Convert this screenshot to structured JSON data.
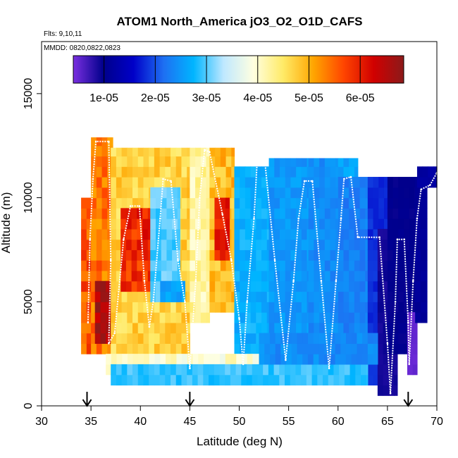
{
  "chart_data": {
    "type": "heatmap",
    "title": "ATOM1 North_America jO3_O2_O1D_CAFS",
    "subtitle_lines": [
      "Flts: 9,10,11",
      "MMDD: 0820,0822,0823"
    ],
    "xlabel": "Latitude (deg N)",
    "ylabel": "Altitude (m)",
    "xlim": [
      30,
      70
    ],
    "ylim": [
      0,
      17500
    ],
    "xticks": [
      30,
      35,
      40,
      45,
      50,
      55,
      60,
      65,
      70
    ],
    "yticks": [
      0,
      5000,
      10000,
      15000
    ],
    "colorbar": {
      "min": 4e-06,
      "max": 6.85e-05,
      "ticks": [
        1e-05,
        2e-05,
        3e-05,
        4e-05,
        5e-05,
        6e-05
      ],
      "tick_labels": [
        "1e-05",
        "2e-05",
        "3e-05",
        "4e-05",
        "5e-05",
        "6e-05"
      ],
      "colors": [
        "#7a2fe0",
        "#00008b",
        "#0000c8",
        "#1e6ff2",
        "#00b5ff",
        "#bfe8ff",
        "#ffffe0",
        "#ffea66",
        "#ffa500",
        "#ff4500",
        "#d10000",
        "#8b1a1a"
      ]
    },
    "arrows_latitude": [
      34.6,
      45,
      67.1
    ],
    "cell_size": {
      "lat_deg": 0.55,
      "alt_m": 500
    },
    "regions": [
      {
        "lat": [
          34,
          35
        ],
        "alt": [
          2500,
          10000
        ],
        "value": 5.6e-05
      },
      {
        "lat": [
          35,
          37.2
        ],
        "alt": [
          2500,
          12900
        ],
        "value": 5.4e-05
      },
      {
        "lat": [
          35.4,
          37
        ],
        "alt": [
          3000,
          6000
        ],
        "value": 6.5e-05
      },
      {
        "lat": [
          37,
          45
        ],
        "alt": [
          2500,
          12400
        ],
        "value": 4.7e-05
      },
      {
        "lat": [
          38,
          41
        ],
        "alt": [
          5500,
          9500
        ],
        "value": 5.9e-05
      },
      {
        "lat": [
          41,
          44
        ],
        "alt": [
          5000,
          10500
        ],
        "value": 3e-05
      },
      {
        "lat": [
          42,
          44.5
        ],
        "alt": [
          5000,
          6000
        ],
        "value": 2.6e-05
      },
      {
        "lat": [
          45,
          47
        ],
        "alt": [
          4000,
          12400
        ],
        "value": 4.2e-05
      },
      {
        "lat": [
          47,
          49.5
        ],
        "alt": [
          4500,
          12400
        ],
        "value": 4.9e-05
      },
      {
        "lat": [
          47.5,
          49
        ],
        "alt": [
          7000,
          10000
        ],
        "value": 6e-05
      },
      {
        "lat": [
          49.5,
          53
        ],
        "alt": [
          2000,
          11500
        ],
        "value": 2.7e-05
      },
      {
        "lat": [
          53,
          57
        ],
        "alt": [
          2000,
          11900
        ],
        "value": 2.5e-05
      },
      {
        "lat": [
          57,
          60
        ],
        "alt": [
          2000,
          11900
        ],
        "value": 2.4e-05
      },
      {
        "lat": [
          60,
          62
        ],
        "alt": [
          2000,
          11900
        ],
        "value": 2.6e-05
      },
      {
        "lat": [
          60,
          63
        ],
        "alt": [
          2000,
          11000
        ],
        "value": 2.3e-05
      },
      {
        "lat": [
          63,
          65
        ],
        "alt": [
          1000,
          11000
        ],
        "value": 1.8e-05
      },
      {
        "lat": [
          64,
          66
        ],
        "alt": [
          500,
          8500
        ],
        "value": 9e-06
      },
      {
        "lat": [
          65,
          67.8
        ],
        "alt": [
          2500,
          11000
        ],
        "value": 1e-05
      },
      {
        "lat": [
          67,
          68
        ],
        "alt": [
          1500,
          4500
        ],
        "value": 5e-06
      },
      {
        "lat": [
          67.8,
          69
        ],
        "alt": [
          4000,
          11000
        ],
        "value": 1.1e-05
      },
      {
        "lat": [
          68,
          70
        ],
        "alt": [
          10500,
          11500
        ],
        "value": 1.2e-05
      },
      {
        "lat": [
          36.5,
          52
        ],
        "alt": [
          1500,
          2500
        ],
        "value": 4e-05
      },
      {
        "lat": [
          37,
          63
        ],
        "alt": [
          1000,
          2000
        ],
        "value": 2.9e-05
      },
      {
        "lat": [
          52,
          64
        ],
        "alt": [
          2000,
          3500
        ],
        "value": 2.4e-05
      }
    ],
    "flight_track": [
      [
        34.7,
        4000
      ],
      [
        34.9,
        8000
      ],
      [
        35.2,
        10900
      ],
      [
        35.5,
        12700
      ],
      [
        36.8,
        12700
      ],
      [
        37.0,
        7000
      ],
      [
        36.8,
        3000
      ],
      [
        37.4,
        3500
      ],
      [
        38.3,
        8000
      ],
      [
        39.0,
        9600
      ],
      [
        39.9,
        9600
      ],
      [
        40.4,
        6000
      ],
      [
        40.9,
        3800
      ],
      [
        41.3,
        5000
      ],
      [
        42.0,
        9000
      ],
      [
        42.3,
        10900
      ],
      [
        43.1,
        10800
      ],
      [
        43.8,
        7000
      ],
      [
        44.5,
        5000
      ],
      [
        45.0,
        1800
      ],
      [
        45.6,
        6000
      ],
      [
        46.0,
        10000
      ],
      [
        46.5,
        12300
      ],
      [
        47.0,
        12200
      ],
      [
        48.3,
        9200
      ],
      [
        49.2,
        7000
      ],
      [
        50.0,
        4200
      ],
      [
        50.4,
        2000
      ],
      [
        50.8,
        5000
      ],
      [
        51.5,
        9000
      ],
      [
        51.8,
        11600
      ],
      [
        52.6,
        11700
      ],
      [
        53.6,
        7000
      ],
      [
        54.7,
        2200
      ],
      [
        55.5,
        6000
      ],
      [
        56.0,
        9000
      ],
      [
        56.6,
        10800
      ],
      [
        57.4,
        10800
      ],
      [
        58.3,
        6000
      ],
      [
        59.1,
        1800
      ],
      [
        59.8,
        6000
      ],
      [
        60.3,
        9000
      ],
      [
        60.6,
        10900
      ],
      [
        61.3,
        11000
      ],
      [
        62.0,
        8100
      ],
      [
        64.2,
        8100
      ],
      [
        65.0,
        3000
      ],
      [
        65.3,
        600
      ],
      [
        65.8,
        5000
      ],
      [
        66.0,
        8000
      ],
      [
        66.7,
        8000
      ],
      [
        67.1,
        4000
      ],
      [
        67.2,
        2000
      ],
      [
        67.6,
        6000
      ],
      [
        68.0,
        9000
      ],
      [
        68.4,
        10400
      ],
      [
        69.3,
        10600
      ],
      [
        70.0,
        11200
      ]
    ]
  }
}
